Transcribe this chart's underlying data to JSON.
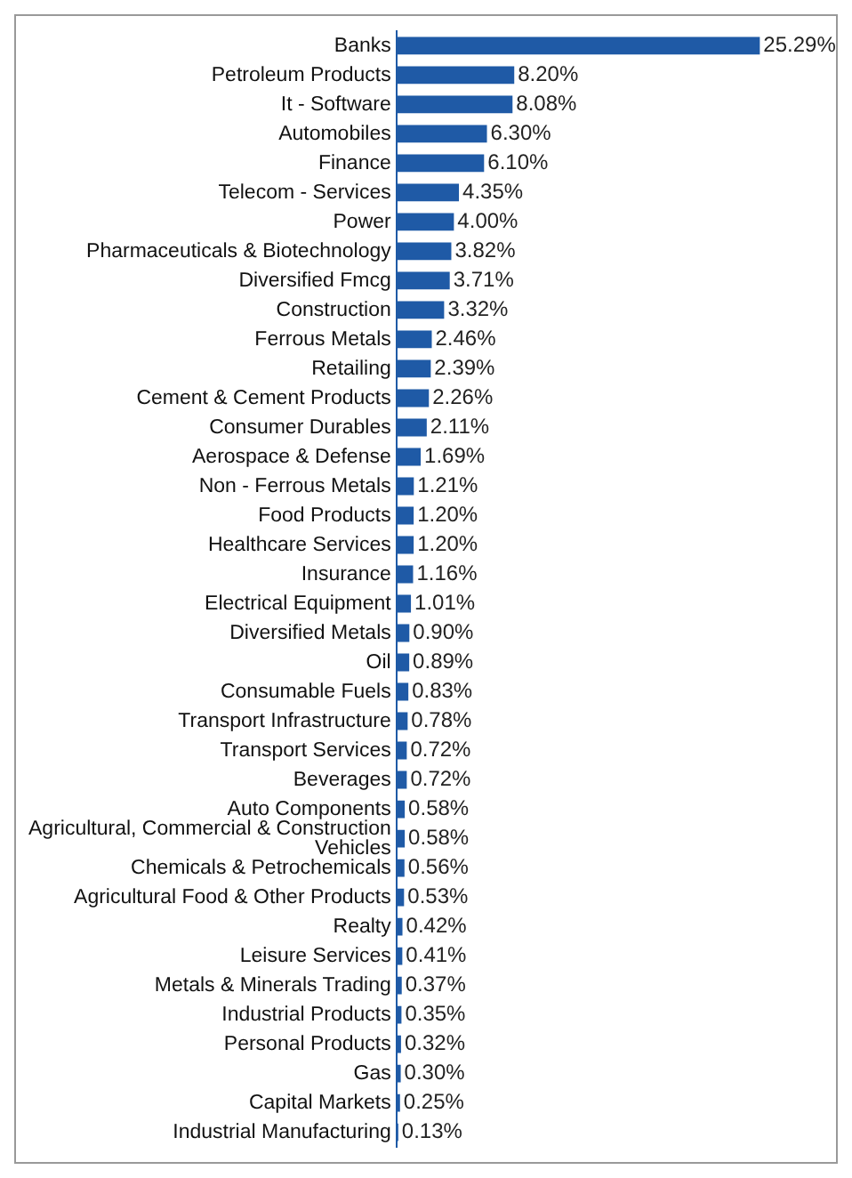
{
  "chart_data": {
    "type": "bar",
    "orientation": "horizontal",
    "color": "#1f5aa6",
    "legend": false,
    "categories": [
      "Banks",
      "Petroleum Products",
      "It - Software",
      "Automobiles",
      "Finance",
      "Telecom - Services",
      "Power",
      "Pharmaceuticals & Biotechnology",
      "Diversified Fmcg",
      "Construction",
      "Ferrous Metals",
      "Retailing",
      "Cement & Cement Products",
      "Consumer Durables",
      "Aerospace & Defense",
      "Non - Ferrous Metals",
      "Food Products",
      "Healthcare Services",
      "Insurance",
      "Electrical Equipment",
      "Diversified Metals",
      "Oil",
      "Consumable Fuels",
      "Transport Infrastructure",
      "Transport Services",
      "Beverages",
      "Auto Components",
      "Agricultural, Commercial & Construction Vehicles",
      "Chemicals & Petrochemicals",
      "Agricultural Food & Other Products",
      "Realty",
      "Leisure Services",
      "Metals & Minerals Trading",
      "Industrial Products",
      "Personal Products",
      "Gas",
      "Capital Markets",
      "Industrial Manufacturing"
    ],
    "values": [
      25.29,
      8.2,
      8.08,
      6.3,
      6.1,
      4.35,
      4.0,
      3.82,
      3.71,
      3.32,
      2.46,
      2.39,
      2.26,
      2.11,
      1.69,
      1.21,
      1.2,
      1.2,
      1.16,
      1.01,
      0.9,
      0.89,
      0.83,
      0.78,
      0.72,
      0.72,
      0.58,
      0.58,
      0.56,
      0.53,
      0.42,
      0.41,
      0.37,
      0.35,
      0.32,
      0.3,
      0.25,
      0.13
    ],
    "value_labels": [
      "25.29%",
      "8.20%",
      "8.08%",
      "6.30%",
      "6.10%",
      "4.35%",
      "4.00%",
      "3.82%",
      "3.71%",
      "3.32%",
      "2.46%",
      "2.39%",
      "2.26%",
      "2.11%",
      "1.69%",
      "1.21%",
      "1.20%",
      "1.20%",
      "1.16%",
      "1.01%",
      "0.90%",
      "0.89%",
      "0.83%",
      "0.78%",
      "0.72%",
      "0.72%",
      "0.58%",
      "0.58%",
      "0.56%",
      "0.53%",
      "0.42%",
      "0.41%",
      "0.37%",
      "0.35%",
      "0.32%",
      "0.30%",
      "0.25%",
      "0.13%"
    ]
  }
}
